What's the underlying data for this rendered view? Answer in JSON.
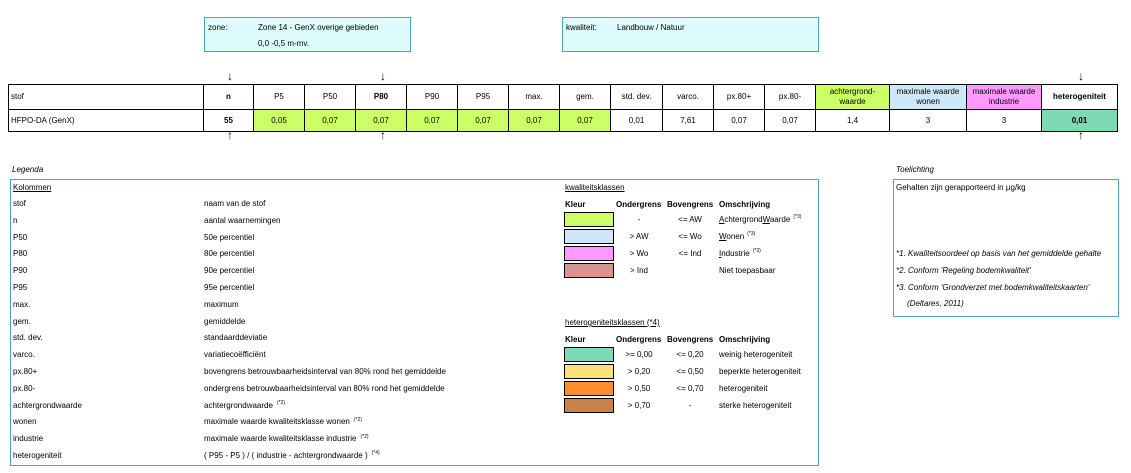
{
  "header": {
    "zone_label": "zone:",
    "zone_value": "Zone 14 - GenX overige gebieden",
    "depth_value": "0,0 -0,5 m-mv.",
    "quality_label": "kwaliteit:",
    "quality_value": "Landbouw / Natuur"
  },
  "table": {
    "headers": [
      "stof",
      "n",
      "P5",
      "P50",
      "P80",
      "P90",
      "P95",
      "max.",
      "gem.",
      "std. dev.",
      "varco.",
      "px.80+",
      "px.80-",
      "achtergrond-\nwaarde",
      "maximale waarde\nwonen",
      "maximale waarde\nindustrie",
      "heterogeniteit"
    ],
    "row": [
      "HFPO-DA (GenX)",
      "55",
      "0,05",
      "0,07",
      "0,07",
      "0,07",
      "0,07",
      "0,07",
      "0,07",
      "0,01",
      "7,61",
      "0,07",
      "0,07",
      "1,4",
      "3",
      "3",
      "0,01"
    ]
  },
  "colors": {
    "green": "#ccff66",
    "lightblue": "#cde9f7",
    "pink": "#ff99ff",
    "rose": "#d99594",
    "teal": "#7fd8b6",
    "yellow": "#ffe07a",
    "orange": "#ff8c2f",
    "brown": "#c8834a",
    "box_bg": "#ddfbfd",
    "box_border": "#4aa6b3"
  },
  "legend": {
    "title": "Legenda",
    "columns_title": "Kolommen",
    "items": [
      {
        "key": "stof",
        "desc": "naam van de stof",
        "sup": ""
      },
      {
        "key": "n",
        "desc": "aantal waarnemingen",
        "sup": ""
      },
      {
        "key": "P50",
        "desc": "50e percentiel",
        "sup": ""
      },
      {
        "key": "P80",
        "desc": "80e percentiel",
        "sup": ""
      },
      {
        "key": "P90",
        "desc": "90e percentiel",
        "sup": ""
      },
      {
        "key": "P95",
        "desc": "95e percentiel",
        "sup": ""
      },
      {
        "key": "max.",
        "desc": "maximum",
        "sup": ""
      },
      {
        "key": "gem.",
        "desc": "gemiddelde",
        "sup": ""
      },
      {
        "key": "std. dev.",
        "desc": "standaarddeviatie",
        "sup": ""
      },
      {
        "key": "varco.",
        "desc": "variatiecoëfficiënt",
        "sup": ""
      },
      {
        "key": "px.80+",
        "desc": "bovengrens betrouwbaarheidsinterval van 80% rond het gemiddelde",
        "sup": ""
      },
      {
        "key": "px.80-",
        "desc": "ondergrens betrouwbaarheidsinterval van 80% rond het gemiddelde",
        "sup": ""
      },
      {
        "key": "achtergrondwaarde",
        "desc": "achtergrondwaarde",
        "sup": "(*2)"
      },
      {
        "key": "wonen",
        "desc": "maximale waarde kwaliteitsklasse wonen",
        "sup": "(*2)"
      },
      {
        "key": "industrie",
        "desc": "maximale waarde kwaliteitsklasse industrie",
        "sup": "(*2)"
      },
      {
        "key": "heterogeniteit",
        "desc": "( P95 - P5 ) / ( industrie - achtergrondwaarde )",
        "sup": "(*4)"
      }
    ],
    "quality_title": "kwaliteitsklassen",
    "hetero_title": "heterogeniteitsklassen (*4)",
    "col_kleur": "Kleur",
    "col_onder": "Ondergrens",
    "col_boven": "Bovengrens",
    "col_omschr": "Omschrijving",
    "quality_rows": [
      {
        "onder": "-",
        "boven": "<= AW",
        "pre": "",
        "ul": "A",
        "mid": "chtergrond",
        "ul2": "W",
        "post": "aarde",
        "sup": "(*3)"
      },
      {
        "onder": "> AW",
        "boven": "<= Wo",
        "pre": "",
        "ul": "W",
        "mid": "onen",
        "ul2": "",
        "post": "",
        "sup": "(*3)"
      },
      {
        "onder": "> Wo",
        "boven": "<= Ind",
        "pre": "",
        "ul": "I",
        "mid": "ndustrie",
        "ul2": "",
        "post": "",
        "sup": "(*3)"
      },
      {
        "onder": "> Ind",
        "boven": "",
        "pre": "Niet toepasbaar",
        "ul": "",
        "mid": "",
        "ul2": "",
        "post": "",
        "sup": ""
      }
    ],
    "hetero_rows": [
      {
        "onder": ">= 0,00",
        "boven": "<= 0,20",
        "omschr": "weinig heterogeniteit"
      },
      {
        "onder": "> 0,20",
        "boven": "<= 0,50",
        "omschr": "beperkte heterogeniteit"
      },
      {
        "onder": "> 0,50",
        "boven": "<= 0,70",
        "omschr": "heterogeniteit"
      },
      {
        "onder": "> 0,70",
        "boven": "-",
        "omschr": "sterke heterogeniteit"
      }
    ]
  },
  "toelichting": {
    "title": "Toelichting",
    "text": "Gehalten zijn gerapporteerd in µg/kg",
    "note1": "*1. Kwaliteitsoordeel op basis van het gemiddelde  gehalte",
    "note2": "*2. Conform 'Regeling bodemkwaliteit'",
    "note3": "*3. Conform 'Grondverzet met bodemkwaliteitskaarten'",
    "note4": "(Deltares, 2011)"
  },
  "arrows": "↓↑"
}
